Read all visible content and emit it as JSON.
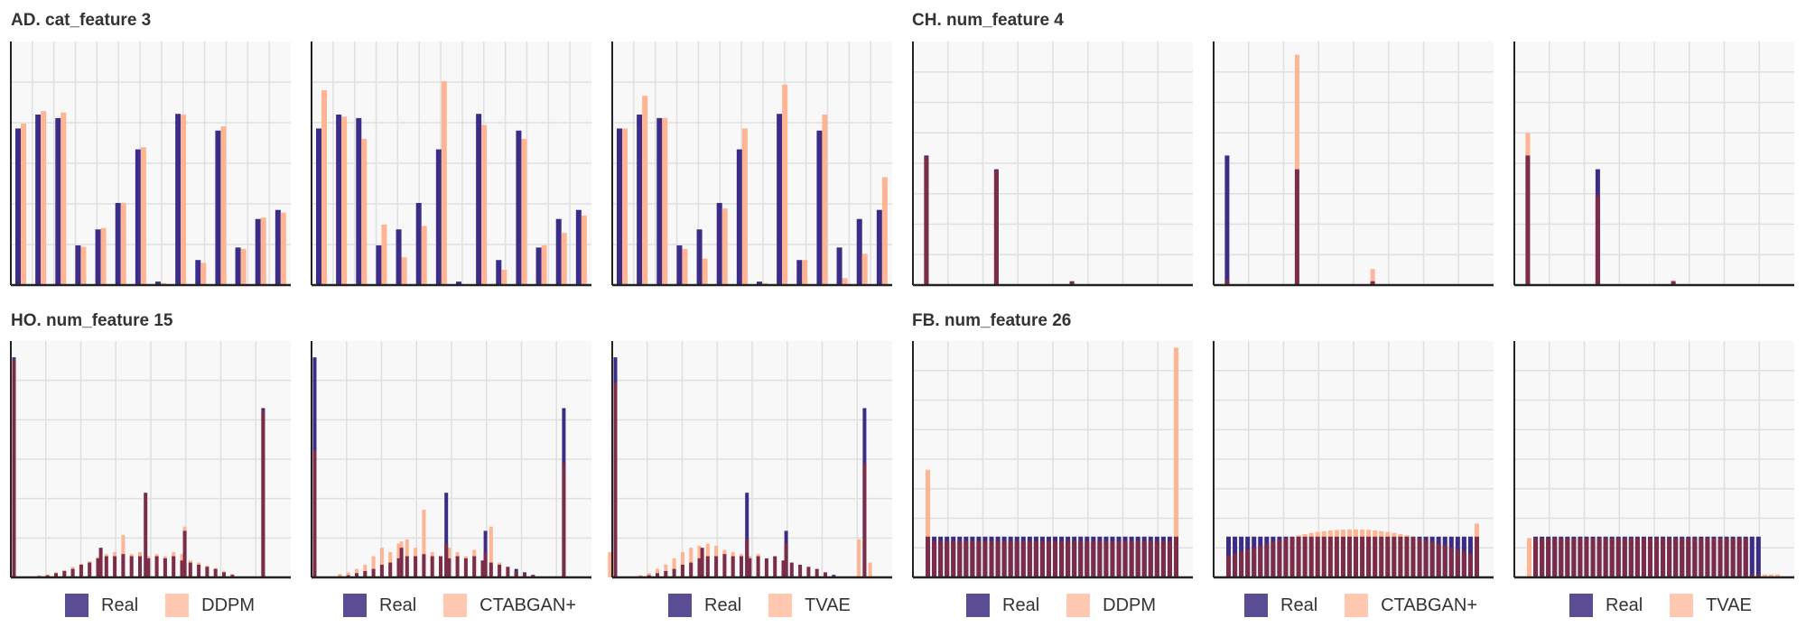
{
  "colors": {
    "real": "#3b2d87",
    "synthetic": "#ffb494",
    "overlap": "#7b2c48",
    "plot_bg": "#f8f8f8",
    "grid": "#e0e0e0"
  },
  "titles": {
    "top_left": "AD. cat_feature 3",
    "top_right": "CH. num_feature 4",
    "bottom_left": "HO. num_feature 15",
    "bottom_right": "FB. num_feature 26"
  },
  "legends": [
    {
      "real": "Real",
      "synth": "DDPM"
    },
    {
      "real": "Real",
      "synth": "CTABGAN+"
    },
    {
      "real": "Real",
      "synth": "TVAE"
    },
    {
      "real": "Real",
      "synth": "DDPM"
    },
    {
      "real": "Real",
      "synth": "CTABGAN+"
    },
    {
      "real": "Real",
      "synth": "TVAE"
    }
  ],
  "chart_data": [
    {
      "type": "bar",
      "dataset": "AD",
      "feature": "cat_feature 3",
      "model": "DDPM",
      "ylim": [
        0,
        0.35
      ],
      "real": [
        0.225,
        0.245,
        0.24,
        0.057,
        0.08,
        0.118,
        0.195,
        0.005,
        0.246,
        0.036,
        0.222,
        0.054,
        0.095,
        0.108
      ],
      "synth": [
        0.232,
        0.25,
        0.248,
        0.055,
        0.082,
        0.118,
        0.198,
        0.003,
        0.245,
        0.032,
        0.228,
        0.052,
        0.097,
        0.104
      ]
    },
    {
      "type": "bar",
      "dataset": "AD",
      "feature": "cat_feature 3",
      "model": "CTABGAN+",
      "ylim": [
        0,
        0.35
      ],
      "real": [
        0.225,
        0.245,
        0.24,
        0.057,
        0.08,
        0.118,
        0.195,
        0.005,
        0.246,
        0.036,
        0.222,
        0.054,
        0.095,
        0.108
      ],
      "synth": [
        0.28,
        0.242,
        0.21,
        0.087,
        0.04,
        0.085,
        0.293,
        0.0,
        0.23,
        0.022,
        0.21,
        0.057,
        0.075,
        0.1
      ]
    },
    {
      "type": "bar",
      "dataset": "AD",
      "feature": "cat_feature 3",
      "model": "TVAE",
      "ylim": [
        0,
        0.35
      ],
      "real": [
        0.225,
        0.245,
        0.24,
        0.057,
        0.08,
        0.118,
        0.195,
        0.005,
        0.246,
        0.036,
        0.222,
        0.054,
        0.095,
        0.108
      ],
      "synth": [
        0.225,
        0.272,
        0.24,
        0.052,
        0.038,
        0.11,
        0.225,
        0.003,
        0.288,
        0.036,
        0.245,
        0.01,
        0.045,
        0.155
      ]
    },
    {
      "type": "bar",
      "dataset": "CH",
      "feature": "num_feature 4",
      "model": "DDPM",
      "ylim": [
        0,
        0.75
      ],
      "real_bins": [
        [
          0.04,
          0.405
        ],
        [
          0.29,
          0.362
        ],
        [
          0.56,
          0.012
        ]
      ],
      "synth_bins": [
        [
          0.04,
          0.4
        ],
        [
          0.29,
          0.358
        ],
        [
          0.56,
          0.01
        ]
      ]
    },
    {
      "type": "bar",
      "dataset": "CH",
      "feature": "num_feature 4",
      "model": "CTABGAN+",
      "ylim": [
        0,
        0.75
      ],
      "real_bins": [
        [
          0.04,
          0.405
        ],
        [
          0.29,
          0.362
        ],
        [
          0.56,
          0.012
        ]
      ],
      "synth_bins": [
        [
          0.04,
          0.015
        ],
        [
          0.29,
          0.72
        ],
        [
          0.56,
          0.05
        ]
      ]
    },
    {
      "type": "bar",
      "dataset": "CH",
      "feature": "num_feature 4",
      "model": "TVAE",
      "ylim": [
        0,
        0.75
      ],
      "real_bins": [
        [
          0.04,
          0.405
        ],
        [
          0.29,
          0.362
        ],
        [
          0.56,
          0.012
        ]
      ],
      "synth_bins": [
        [
          0.04,
          0.475
        ],
        [
          0.29,
          0.28
        ],
        [
          0.56,
          0.015
        ]
      ]
    },
    {
      "type": "bar",
      "dataset": "HO",
      "feature": "num_feature 15",
      "model": "DDPM",
      "ylim": [
        0,
        0.55
      ],
      "real_bins": [
        [
          0.05,
          0.52
        ],
        [
          0.14,
          0.003
        ],
        [
          0.17,
          0.005
        ],
        [
          0.2,
          0.01
        ],
        [
          0.23,
          0.015
        ],
        [
          0.26,
          0.02
        ],
        [
          0.29,
          0.03
        ],
        [
          0.32,
          0.035
        ],
        [
          0.35,
          0.045
        ],
        [
          0.38,
          0.05
        ],
        [
          0.41,
          0.05
        ],
        [
          0.44,
          0.055
        ],
        [
          0.47,
          0.05
        ],
        [
          0.5,
          0.05
        ],
        [
          0.53,
          0.045
        ],
        [
          0.56,
          0.05
        ],
        [
          0.59,
          0.045
        ],
        [
          0.62,
          0.05
        ],
        [
          0.65,
          0.04
        ],
        [
          0.68,
          0.035
        ],
        [
          0.71,
          0.03
        ],
        [
          0.74,
          0.025
        ],
        [
          0.77,
          0.02
        ],
        [
          0.8,
          0.012
        ],
        [
          0.83,
          0.006
        ],
        [
          0.94,
          0.4
        ],
        [
          0.36,
          0.07
        ],
        [
          0.52,
          0.2
        ],
        [
          0.66,
          0.11
        ]
      ],
      "synth_bins": [
        [
          0.05,
          0.515
        ],
        [
          0.14,
          0.005
        ],
        [
          0.17,
          0.007
        ],
        [
          0.2,
          0.012
        ],
        [
          0.23,
          0.017
        ],
        [
          0.26,
          0.025
        ],
        [
          0.29,
          0.032
        ],
        [
          0.32,
          0.038
        ],
        [
          0.35,
          0.048
        ],
        [
          0.38,
          0.055
        ],
        [
          0.41,
          0.06
        ],
        [
          0.44,
          0.1
        ],
        [
          0.47,
          0.055
        ],
        [
          0.5,
          0.06
        ],
        [
          0.53,
          0.05
        ],
        [
          0.56,
          0.055
        ],
        [
          0.59,
          0.05
        ],
        [
          0.62,
          0.06
        ],
        [
          0.65,
          0.055
        ],
        [
          0.68,
          0.04
        ],
        [
          0.71,
          0.035
        ],
        [
          0.74,
          0.028
        ],
        [
          0.77,
          0.022
        ],
        [
          0.8,
          0.015
        ],
        [
          0.83,
          0.008
        ],
        [
          0.94,
          0.395
        ],
        [
          0.36,
          0.07
        ],
        [
          0.52,
          0.2
        ],
        [
          0.66,
          0.12
        ]
      ]
    },
    {
      "type": "bar",
      "dataset": "HO",
      "feature": "num_feature 15",
      "model": "CTABGAN+",
      "ylim": [
        0,
        0.55
      ],
      "real_bins": [
        [
          0.05,
          0.52
        ],
        [
          0.14,
          0.003
        ],
        [
          0.17,
          0.005
        ],
        [
          0.2,
          0.01
        ],
        [
          0.23,
          0.015
        ],
        [
          0.26,
          0.02
        ],
        [
          0.29,
          0.03
        ],
        [
          0.32,
          0.035
        ],
        [
          0.35,
          0.045
        ],
        [
          0.38,
          0.05
        ],
        [
          0.41,
          0.05
        ],
        [
          0.44,
          0.055
        ],
        [
          0.47,
          0.05
        ],
        [
          0.5,
          0.05
        ],
        [
          0.53,
          0.045
        ],
        [
          0.56,
          0.05
        ],
        [
          0.59,
          0.045
        ],
        [
          0.62,
          0.05
        ],
        [
          0.65,
          0.04
        ],
        [
          0.68,
          0.035
        ],
        [
          0.71,
          0.03
        ],
        [
          0.74,
          0.025
        ],
        [
          0.77,
          0.02
        ],
        [
          0.8,
          0.012
        ],
        [
          0.83,
          0.006
        ],
        [
          0.94,
          0.4
        ],
        [
          0.36,
          0.07
        ],
        [
          0.52,
          0.2
        ],
        [
          0.66,
          0.11
        ]
      ],
      "synth_bins": [
        [
          0.05,
          0.3
        ],
        [
          0.14,
          0.008
        ],
        [
          0.17,
          0.012
        ],
        [
          0.2,
          0.02
        ],
        [
          0.23,
          0.03
        ],
        [
          0.26,
          0.05
        ],
        [
          0.29,
          0.07
        ],
        [
          0.32,
          0.06
        ],
        [
          0.35,
          0.08
        ],
        [
          0.38,
          0.09
        ],
        [
          0.41,
          0.07
        ],
        [
          0.44,
          0.16
        ],
        [
          0.47,
          0.06
        ],
        [
          0.5,
          0.05
        ],
        [
          0.53,
          0.07
        ],
        [
          0.56,
          0.06
        ],
        [
          0.59,
          0.05
        ],
        [
          0.62,
          0.065
        ],
        [
          0.65,
          0.04
        ],
        [
          0.68,
          0.12
        ],
        [
          0.71,
          0.035
        ],
        [
          0.74,
          0.025
        ],
        [
          0.77,
          0.015
        ],
        [
          0.8,
          0.01
        ],
        [
          0.83,
          0.005
        ],
        [
          0.94,
          0.27
        ],
        [
          0.36,
          0.085
        ],
        [
          0.52,
          0.08
        ],
        [
          0.66,
          0.06
        ]
      ]
    },
    {
      "type": "bar",
      "dataset": "HO",
      "feature": "num_feature 15",
      "model": "TVAE",
      "ylim": [
        0,
        0.55
      ],
      "real_bins": [
        [
          0.05,
          0.52
        ],
        [
          0.14,
          0.003
        ],
        [
          0.17,
          0.005
        ],
        [
          0.2,
          0.01
        ],
        [
          0.23,
          0.015
        ],
        [
          0.26,
          0.02
        ],
        [
          0.29,
          0.03
        ],
        [
          0.32,
          0.035
        ],
        [
          0.35,
          0.045
        ],
        [
          0.38,
          0.05
        ],
        [
          0.41,
          0.05
        ],
        [
          0.44,
          0.055
        ],
        [
          0.47,
          0.05
        ],
        [
          0.5,
          0.05
        ],
        [
          0.53,
          0.045
        ],
        [
          0.56,
          0.05
        ],
        [
          0.59,
          0.045
        ],
        [
          0.62,
          0.05
        ],
        [
          0.65,
          0.04
        ],
        [
          0.68,
          0.035
        ],
        [
          0.71,
          0.03
        ],
        [
          0.74,
          0.025
        ],
        [
          0.77,
          0.02
        ],
        [
          0.8,
          0.012
        ],
        [
          0.83,
          0.006
        ],
        [
          0.94,
          0.4
        ],
        [
          0.36,
          0.07
        ],
        [
          0.52,
          0.2
        ],
        [
          0.66,
          0.11
        ]
      ],
      "synth_bins": [
        [
          0.05,
          0.46
        ],
        [
          0.03,
          0.06
        ],
        [
          0.14,
          0.005
        ],
        [
          0.17,
          0.01
        ],
        [
          0.2,
          0.02
        ],
        [
          0.23,
          0.03
        ],
        [
          0.26,
          0.045
        ],
        [
          0.29,
          0.06
        ],
        [
          0.32,
          0.07
        ],
        [
          0.35,
          0.075
        ],
        [
          0.38,
          0.08
        ],
        [
          0.41,
          0.075
        ],
        [
          0.44,
          0.065
        ],
        [
          0.47,
          0.06
        ],
        [
          0.5,
          0.055
        ],
        [
          0.53,
          0.05
        ],
        [
          0.56,
          0.055
        ],
        [
          0.59,
          0.045
        ],
        [
          0.62,
          0.05
        ],
        [
          0.65,
          0.04
        ],
        [
          0.68,
          0.035
        ],
        [
          0.71,
          0.03
        ],
        [
          0.74,
          0.025
        ],
        [
          0.77,
          0.02
        ],
        [
          0.8,
          0.012
        ],
        [
          0.92,
          0.09
        ],
        [
          0.94,
          0.27
        ],
        [
          0.96,
          0.035
        ],
        [
          0.36,
          0.07
        ],
        [
          0.52,
          0.09
        ],
        [
          0.66,
          0.08
        ]
      ]
    },
    {
      "type": "bar",
      "dataset": "FB",
      "feature": "num_feature 26",
      "model": "DDPM",
      "ylim": [
        0,
        0.8
      ],
      "bins": 40,
      "real_level": 0.14,
      "synth_level": 0.125,
      "synth_spikes": [
        [
          0,
          0.37
        ],
        [
          39,
          0.79
        ]
      ]
    },
    {
      "type": "bar",
      "dataset": "FB",
      "feature": "num_feature 26",
      "model": "CTABGAN+",
      "ylim": [
        0,
        0.8
      ],
      "bins": 40,
      "real_level": 0.14,
      "synth_shape": "hump",
      "synth_peak": 0.165,
      "synth_spikes": [
        [
          39,
          0.185
        ]
      ]
    },
    {
      "type": "bar",
      "dataset": "FB",
      "feature": "num_feature 26",
      "model": "TVAE",
      "ylim": [
        0,
        0.8
      ],
      "bins": 40,
      "real_level": 0.14,
      "real_span": [
        1,
        36
      ],
      "synth_shape": "flat",
      "synth_level": 0.135,
      "synth_span": [
        0,
        34
      ]
    }
  ]
}
